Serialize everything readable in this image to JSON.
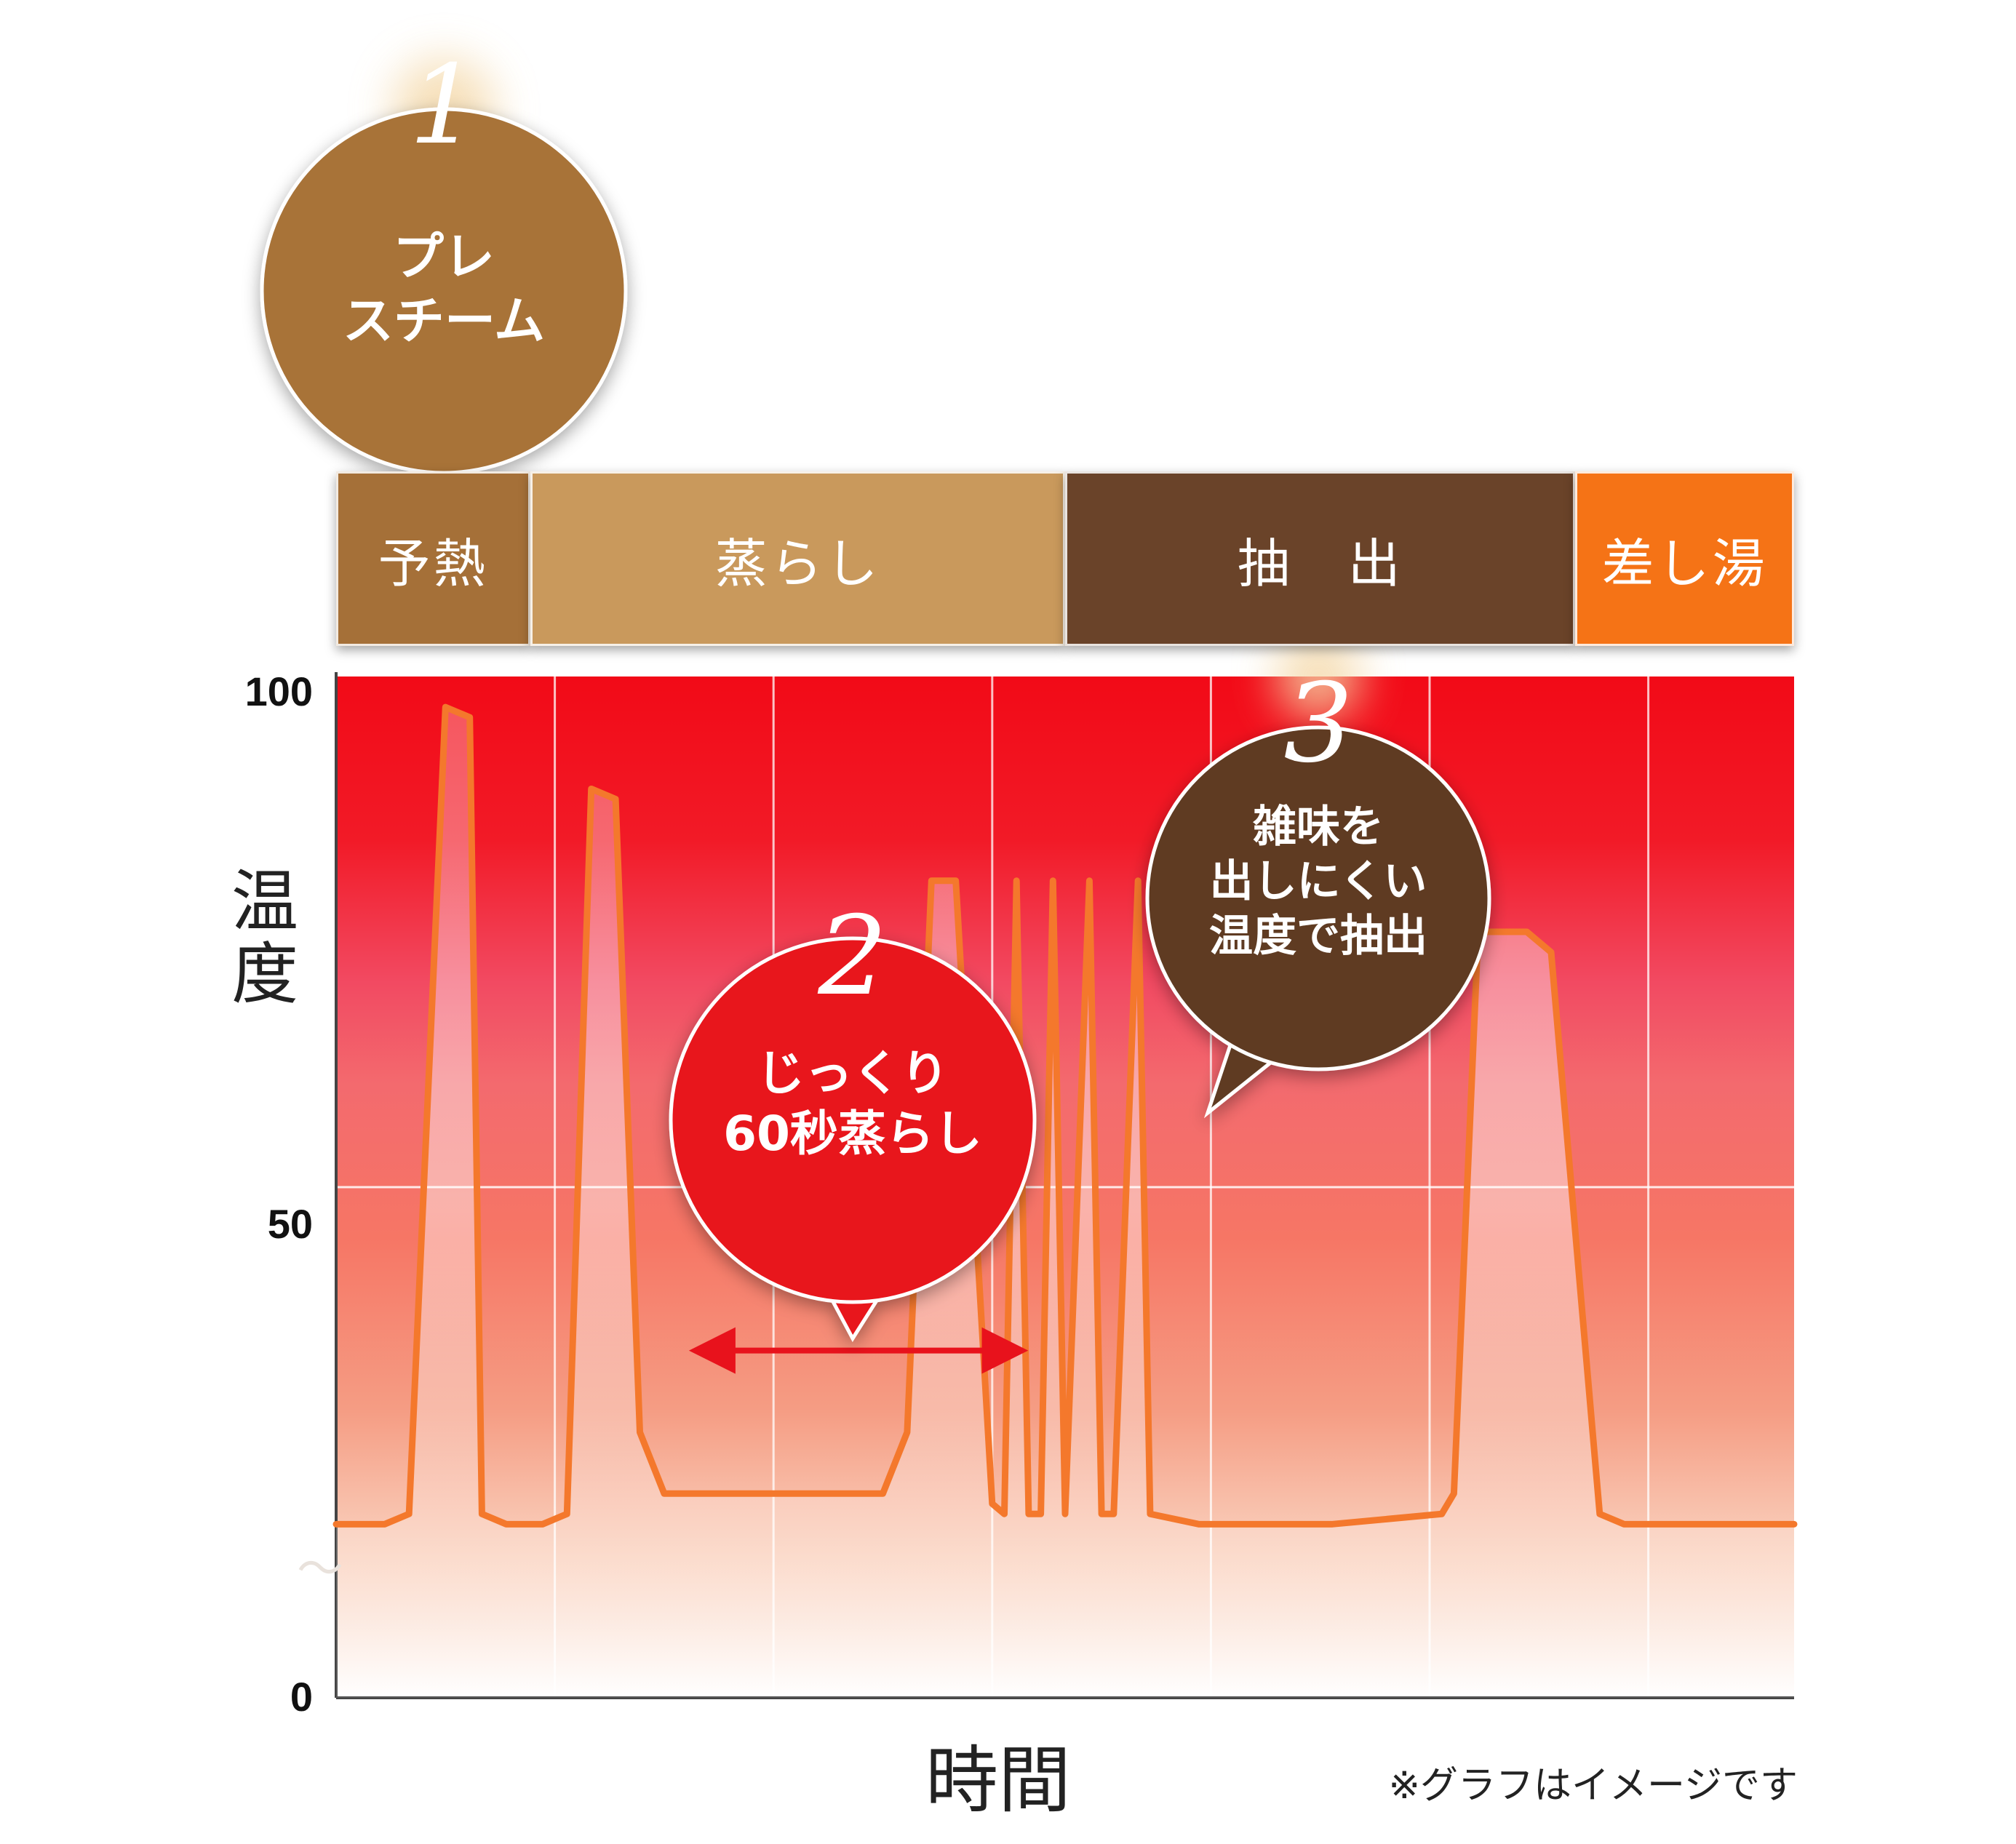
{
  "phases": [
    {
      "label": "予熱",
      "color": "#a57038"
    },
    {
      "label": "蒸らし",
      "color": "#c9995c"
    },
    {
      "label": "抽　出",
      "color": "#6a4329"
    },
    {
      "label": "差し湯",
      "color": "#f57316"
    }
  ],
  "callouts": [
    {
      "number": "1",
      "text": "プレ\nスチーム",
      "color": "#a87339"
    },
    {
      "number": "2",
      "text": "じっくり\n60秒蒸らし",
      "color": "#e8121c"
    },
    {
      "number": "3",
      "text": "雑味を\n出しにくい\n温度で抽出",
      "color": "#5e3a24"
    }
  ],
  "axes": {
    "ylabel": "温\n度",
    "xlabel": "時間",
    "break_mark": "〜"
  },
  "note": "※グラフはイメージです",
  "chart_data": {
    "type": "line",
    "title": "",
    "xlabel": "時間",
    "ylabel": "温度",
    "ylim": [
      0,
      100
    ],
    "yticks": [
      "0",
      "50",
      "100"
    ],
    "grid": true,
    "series": [
      {
        "x": [
          0,
          4,
          6,
          9,
          11,
          12,
          14,
          17,
          19,
          21,
          23,
          25,
          27,
          45,
          47,
          49,
          51,
          54,
          55,
          56,
          57,
          58,
          59,
          60,
          62,
          63,
          64,
          66,
          67,
          71,
          73,
          75,
          77,
          78,
          79,
          80,
          81,
          82,
          91,
          92,
          94,
          98,
          100,
          104,
          106,
          108,
          111,
          120
        ],
        "y": [
          17,
          17,
          18,
          97,
          96,
          18,
          17,
          17,
          18,
          89,
          88,
          26,
          20,
          20,
          26,
          80,
          80,
          19,
          18,
          80,
          18,
          18,
          80,
          18,
          80,
          18,
          18,
          80,
          18,
          17,
          17,
          17,
          17,
          17,
          17,
          17,
          17,
          17,
          18,
          20,
          75,
          75,
          73,
          18,
          17,
          17,
          17,
          17
        ],
        "color": "#f4782c"
      }
    ],
    "annotations": [
      {
        "type": "arrow",
        "from": 27,
        "to": 59,
        "y": 34,
        "color": "#e8121c"
      }
    ]
  }
}
